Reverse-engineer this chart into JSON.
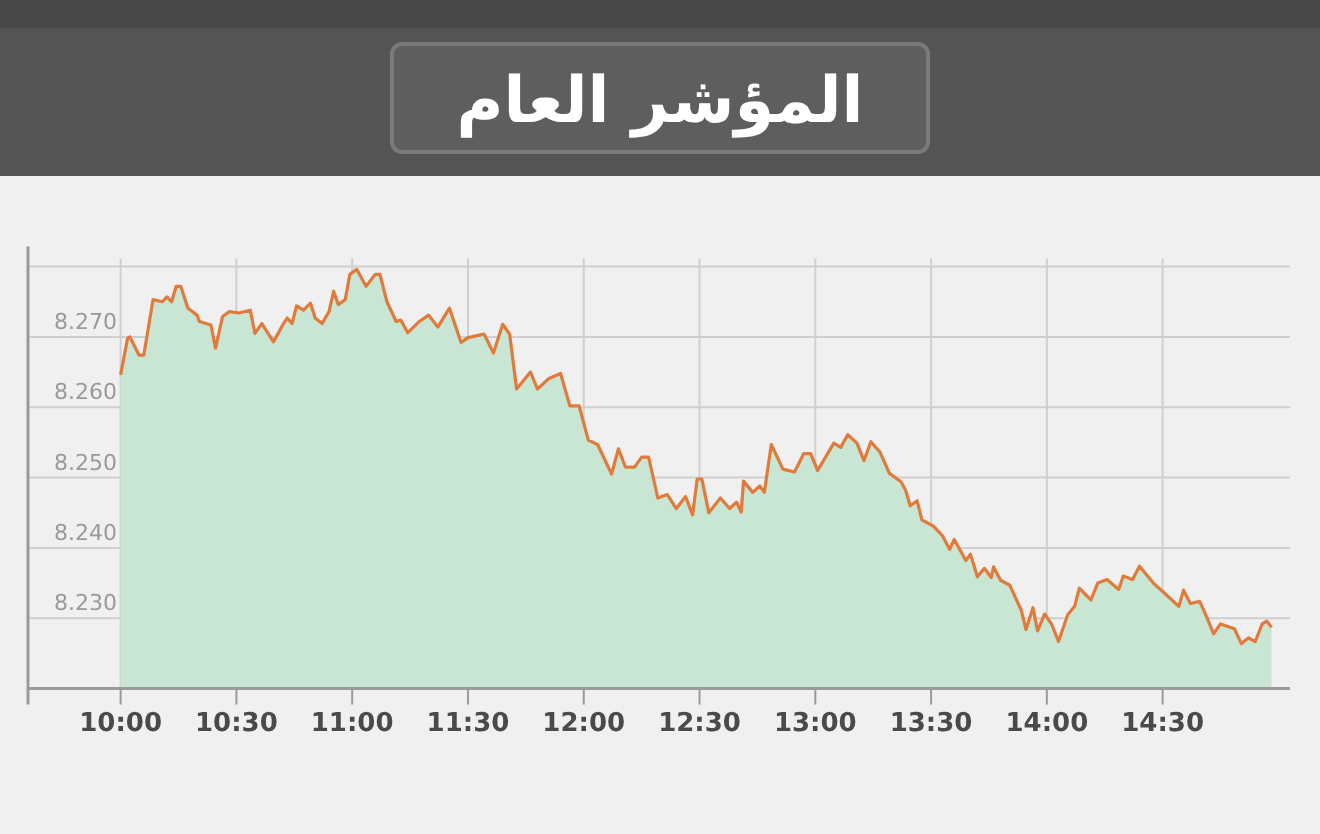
{
  "chart_data": {
    "type": "area",
    "title": "المؤشر العام",
    "x": [
      10.0,
      10.03,
      10.04,
      10.08,
      10.1,
      10.14,
      10.18,
      10.2,
      10.22,
      10.24,
      10.26,
      10.29,
      10.33,
      10.34,
      10.39,
      10.41,
      10.44,
      10.47,
      10.51,
      10.56,
      10.58,
      10.61,
      10.66,
      10.7,
      10.72,
      10.74,
      10.76,
      10.79,
      10.82,
      10.84,
      10.87,
      10.9,
      10.92,
      10.94,
      10.97,
      10.99,
      11.02,
      11.06,
      11.1,
      11.12,
      11.15,
      11.19,
      11.21,
      11.24,
      11.29,
      11.33,
      11.37,
      11.42,
      11.47,
      11.5,
      11.57,
      11.61,
      11.65,
      11.68,
      11.71,
      11.77,
      11.8,
      11.85,
      11.9,
      11.94,
      11.98,
      12.02,
      12.06,
      12.12,
      12.15,
      12.18,
      12.22,
      12.25,
      12.28,
      12.32,
      12.36,
      12.4,
      12.44,
      12.47,
      12.49,
      12.51,
      12.54,
      12.59,
      12.63,
      12.66,
      12.68,
      12.69,
      12.73,
      12.76,
      12.78,
      12.81,
      12.86,
      12.91,
      12.95,
      12.98,
      13.01,
      13.08,
      13.11,
      13.14,
      13.18,
      13.21,
      13.24,
      13.28,
      13.32,
      13.37,
      13.39,
      13.41,
      13.44,
      13.46,
      13.51,
      13.55,
      13.58,
      13.6,
      13.65,
      13.67,
      13.7,
      13.73,
      13.76,
      13.77,
      13.8,
      13.84,
      13.89,
      13.91,
      13.94,
      13.96,
      13.99,
      14.02,
      14.05,
      14.09,
      14.12,
      14.14,
      14.19,
      14.22,
      14.26,
      14.31,
      14.33,
      14.37,
      14.4,
      14.46,
      14.5,
      14.54,
      14.57,
      14.59,
      14.62,
      14.66,
      14.69,
      14.72,
      14.75,
      14.81,
      14.84,
      14.87,
      14.9,
      14.93,
      14.95,
      14.97
    ],
    "series": [
      {
        "color": "#e07b3c",
        "values": [
          8.2646,
          8.2698,
          8.27,
          8.2674,
          8.2674,
          8.2753,
          8.275,
          8.2757,
          8.275,
          8.2772,
          8.2772,
          8.2741,
          8.2731,
          8.2722,
          8.2717,
          8.2684,
          8.2729,
          8.2736,
          8.2734,
          8.2738,
          8.2705,
          8.2719,
          8.2693,
          8.2717,
          8.2727,
          8.2719,
          8.2744,
          8.2738,
          8.2748,
          8.2727,
          8.2719,
          8.2736,
          8.2765,
          8.2746,
          8.2753,
          8.2789,
          8.2796,
          8.2772,
          8.2789,
          8.2789,
          8.275,
          8.2722,
          8.2724,
          8.2706,
          8.2722,
          8.2731,
          8.2714,
          8.2741,
          8.2692,
          8.2699,
          8.2704,
          8.2677,
          8.2718,
          8.2704,
          8.2626,
          8.265,
          8.2626,
          8.2641,
          8.2648,
          8.2602,
          8.2602,
          8.2553,
          8.2547,
          8.2505,
          8.2541,
          8.2515,
          8.2515,
          8.2529,
          8.2529,
          8.2471,
          8.2476,
          8.2456,
          8.2473,
          8.2447,
          8.2498,
          8.2498,
          8.245,
          8.2471,
          8.2456,
          8.2465,
          8.2451,
          8.2495,
          8.2479,
          8.2488,
          8.2479,
          8.2547,
          8.2512,
          8.2508,
          8.2534,
          8.2534,
          8.251,
          8.2549,
          8.2543,
          8.2561,
          8.2549,
          8.2524,
          8.2551,
          8.2536,
          8.2506,
          8.2494,
          8.2482,
          8.246,
          8.2467,
          8.244,
          8.2431,
          8.2417,
          8.2398,
          8.2412,
          8.2382,
          8.2391,
          8.2359,
          8.2371,
          8.2358,
          8.2373,
          8.2354,
          8.2347,
          8.2311,
          8.2284,
          8.2315,
          8.2282,
          8.2306,
          8.2292,
          8.2267,
          8.2305,
          8.2317,
          8.2343,
          8.2326,
          8.235,
          8.2355,
          8.2341,
          8.236,
          8.2355,
          8.2374,
          8.235,
          8.2338,
          8.2326,
          8.2317,
          8.234,
          8.2321,
          8.2324,
          8.2302,
          8.2278,
          8.2292,
          8.2285,
          8.2264,
          8.2272,
          8.2267,
          8.2292,
          8.2296,
          8.2287
        ]
      }
    ],
    "xlim": [
      9.6,
      15.05
    ],
    "xticks": [
      {
        "value": 10,
        "label": "10:00"
      },
      {
        "value": 10.5,
        "label": "10:30"
      },
      {
        "value": 11,
        "label": "11:00"
      },
      {
        "value": 11.5,
        "label": "11:30"
      },
      {
        "value": 12,
        "label": "12:00"
      },
      {
        "value": 12.5,
        "label": "12:30"
      },
      {
        "value": 13,
        "label": "13:00"
      },
      {
        "value": 13.5,
        "label": "13:30"
      },
      {
        "value": 14,
        "label": "14:00"
      },
      {
        "value": 14.5,
        "label": "14:30"
      }
    ],
    "ylim": [
      8.22,
      8.28
    ],
    "yticks": [
      {
        "value": 8.22,
        "label": null
      },
      {
        "value": 8.23,
        "label": "8.230"
      },
      {
        "value": 8.24,
        "label": "8.240"
      },
      {
        "value": 8.25,
        "label": "8.250"
      },
      {
        "value": 8.26,
        "label": "8.260"
      },
      {
        "value": 8.27,
        "label": "8.270"
      },
      {
        "value": 8.28,
        "label": null
      }
    ],
    "grid": true
  }
}
